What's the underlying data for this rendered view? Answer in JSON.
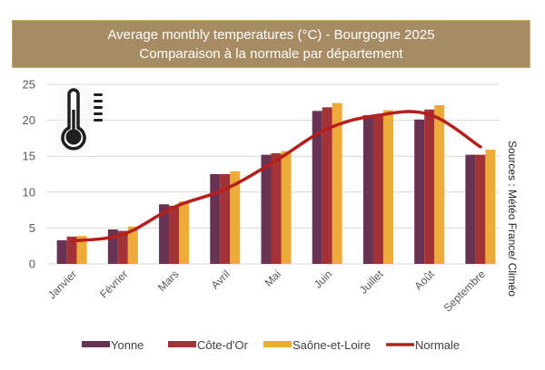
{
  "chart_data": {
    "type": "bar",
    "title": "Average monthly temperatures (°C) - Bourgogne 2025",
    "subtitle": "Comparaison à la normale par département",
    "xlabel": "",
    "ylabel": "",
    "ylim": [
      0,
      25
    ],
    "yticks": [
      0,
      5,
      10,
      15,
      20,
      25
    ],
    "grid": true,
    "legend_position": "bottom",
    "categories": [
      "Janvier",
      "Février",
      "Mars",
      "Avril",
      "Mai",
      "Juin",
      "Juillet",
      "Août",
      "Septembre"
    ],
    "series": [
      {
        "name": "Yonne",
        "type": "bar",
        "color": "#6A3252",
        "values": [
          3.3,
          4.8,
          8.3,
          12.5,
          15.2,
          21.3,
          20.7,
          20.1,
          15.2
        ]
      },
      {
        "name": "Côte-d'Or",
        "type": "bar",
        "color": "#A33236",
        "values": [
          3.8,
          4.6,
          8.1,
          12.5,
          15.4,
          21.8,
          20.8,
          21.5,
          15.2
        ]
      },
      {
        "name": "Saône-et-Loire",
        "type": "bar",
        "color": "#EDAA38",
        "values": [
          3.9,
          5.2,
          8.7,
          12.9,
          15.7,
          22.4,
          21.4,
          22.1,
          15.9
        ]
      },
      {
        "name": "Normale",
        "type": "line",
        "color": "#B5201C",
        "values": [
          3.2,
          4.1,
          7.9,
          10.4,
          14.4,
          18.8,
          20.7,
          20.8,
          16.3
        ]
      }
    ],
    "annotation": "Sources : Météo France/ Climéo",
    "icon": "thermometer-icon"
  },
  "header": {
    "title": "Average monthly temperatures (°C) - Bourgogne 2025",
    "subtitle": "Comparaison à la normale par département"
  },
  "source_note": "Sources : Météo France/ Climéo"
}
